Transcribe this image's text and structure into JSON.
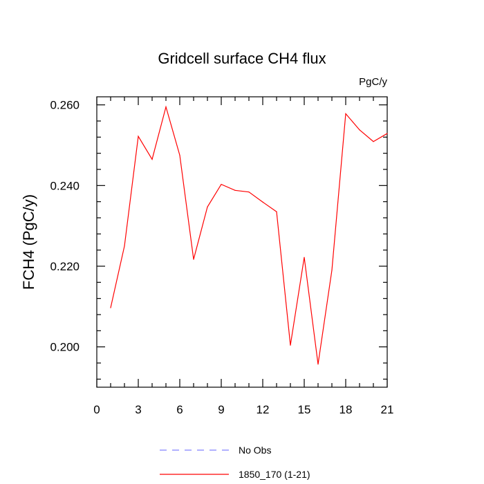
{
  "chart_data": {
    "type": "line",
    "title": "Gridcell surface CH4 flux",
    "units_label": "PgC/y",
    "ylabel": "FCH4  (PgC/y)",
    "xlabel": "",
    "xlim": [
      0,
      21
    ],
    "ylim": [
      0.19,
      0.262
    ],
    "x_ticks": [
      0,
      3,
      6,
      9,
      12,
      15,
      18,
      21
    ],
    "x_tick_labels": [
      "0",
      "3",
      "6",
      "9",
      "12",
      "15",
      "18",
      "21"
    ],
    "y_ticks": [
      0.2,
      0.22,
      0.24,
      0.26
    ],
    "y_tick_labels": [
      "0.200",
      "0.220",
      "0.240",
      "0.260"
    ],
    "grid": false,
    "legend_position": "bottom",
    "legend": [
      {
        "label": "No Obs",
        "color": "#8080ff",
        "style": "dashed"
      },
      {
        "label": "1850_170 (1-21)",
        "color": "#ff0000",
        "style": "solid"
      }
    ],
    "series": [
      {
        "name": "1850_170 (1-21)",
        "color": "#ff0000",
        "x": [
          1,
          2,
          3,
          4,
          5,
          6,
          7,
          8,
          9,
          10,
          11,
          12,
          13,
          14,
          15,
          16,
          17,
          18,
          19,
          20,
          21
        ],
        "y": [
          0.2097,
          0.225,
          0.2522,
          0.2465,
          0.2595,
          0.2475,
          0.2217,
          0.2347,
          0.2403,
          0.2388,
          0.2384,
          0.2359,
          0.2335,
          0.2004,
          0.2222,
          0.1957,
          0.219,
          0.2578,
          0.2538,
          0.2509,
          0.2529
        ]
      }
    ]
  }
}
